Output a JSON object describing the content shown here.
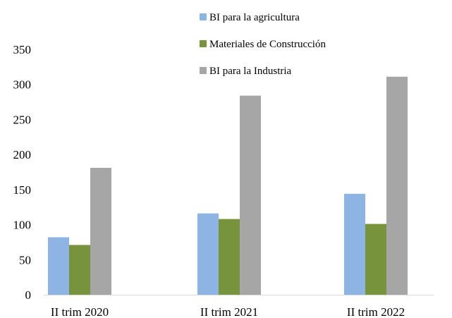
{
  "chart_data": {
    "type": "bar",
    "title": "",
    "xlabel": "",
    "ylabel": "",
    "categories": [
      "II trim 2020",
      "II trim 2021",
      "II trim 2022"
    ],
    "series": [
      {
        "name": "BI para la agricultura",
        "values": [
          82,
          116,
          144
        ],
        "color": "#8db4e2"
      },
      {
        "name": "Materiales de Construcción",
        "values": [
          71,
          108,
          101
        ],
        "color": "#77933c"
      },
      {
        "name": "BI para la Industria",
        "values": [
          181,
          284,
          311
        ],
        "color": "#a6a6a6"
      }
    ],
    "ylim": [
      0,
      350
    ],
    "yticks": [
      0,
      50,
      100,
      150,
      200,
      250,
      300,
      350
    ],
    "ytick_labels": [
      "0",
      "50",
      "100",
      "150",
      "200",
      "250",
      "300",
      "350"
    ],
    "grid": false,
    "legend": "top"
  }
}
